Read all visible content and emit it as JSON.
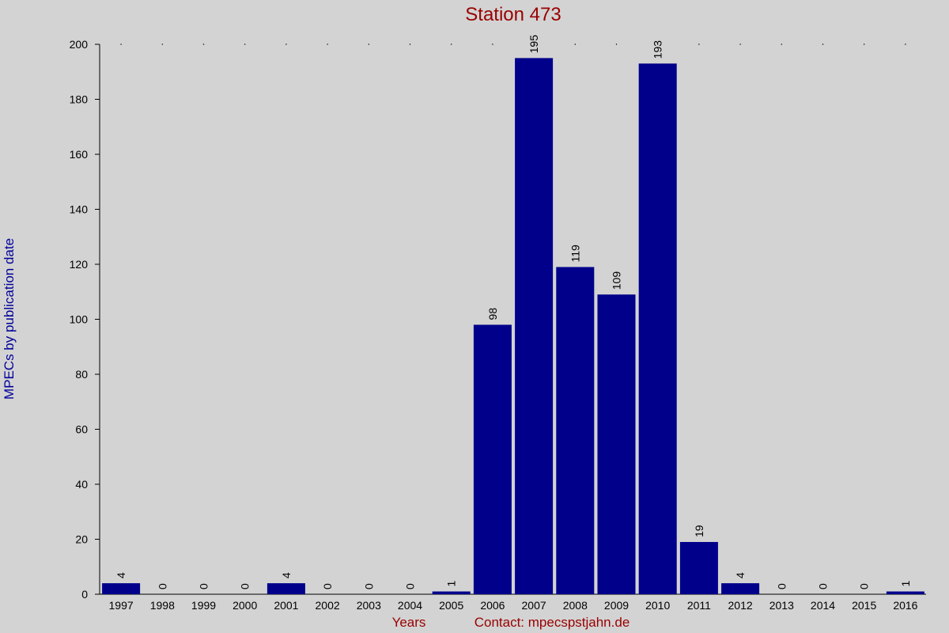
{
  "chart_data": {
    "type": "bar",
    "title": "Station 473",
    "x_label": "Years",
    "contact": "Contact: mpecspstjahn.de",
    "y_label": "MPECs by publication date",
    "categories": [
      "1997",
      "1998",
      "1999",
      "2000",
      "2001",
      "2002",
      "2003",
      "2004",
      "2005",
      "2006",
      "2007",
      "2008",
      "2009",
      "2010",
      "2011",
      "2012",
      "2013",
      "2014",
      "2015",
      "2016"
    ],
    "values": [
      4,
      0,
      0,
      0,
      4,
      0,
      0,
      0,
      1,
      98,
      195,
      119,
      109,
      193,
      19,
      4,
      0,
      0,
      0,
      1
    ],
    "color": "#00008b",
    "ylim": [
      0,
      200
    ],
    "yticks": [
      0,
      20,
      40,
      60,
      80,
      100,
      120,
      140,
      160,
      180,
      200
    ],
    "grid": false
  }
}
